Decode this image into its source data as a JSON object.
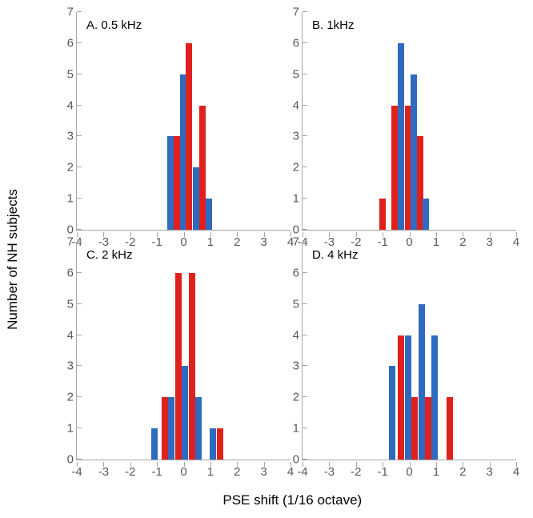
{
  "figure": {
    "x_axis_label": "PSE shift (1/16 octave)",
    "y_axis_label": "Number of NH subjects",
    "xlim": [
      -4,
      4
    ],
    "ylim": [
      0,
      7
    ],
    "x_tick_step": 1,
    "y_tick_step": 1,
    "bar_half_width_x_units": 0.12,
    "series_colors": {
      "blue": "#2e6bbf",
      "red": "#e0201c"
    },
    "axis_color": "#a6a6a6",
    "tick_label_color": "#595959",
    "tick_label_fontsize": 15,
    "title_fontsize": 15,
    "axis_label_fontsize": 17,
    "background_color": "#ffffff",
    "panels": [
      {
        "key": "A",
        "title": "A. 0.5 kHz",
        "bars": [
          {
            "x": -0.5,
            "height": 3,
            "color": "blue"
          },
          {
            "x": -0.25,
            "height": 3,
            "color": "red"
          },
          {
            "x": 0,
            "height": 5,
            "color": "blue"
          },
          {
            "x": 0.2,
            "height": 6,
            "color": "red"
          },
          {
            "x": 0.45,
            "height": 2,
            "color": "blue"
          },
          {
            "x": 0.7,
            "height": 4,
            "color": "red"
          },
          {
            "x": 0.95,
            "height": 1,
            "color": "blue"
          }
        ]
      },
      {
        "key": "B",
        "title": "B. 1kHz",
        "bars": [
          {
            "x": -1.0,
            "height": 1,
            "color": "red"
          },
          {
            "x": -0.55,
            "height": 4,
            "color": "red"
          },
          {
            "x": -0.3,
            "height": 6,
            "color": "blue"
          },
          {
            "x": -0.05,
            "height": 4,
            "color": "red"
          },
          {
            "x": 0.15,
            "height": 5,
            "color": "blue"
          },
          {
            "x": 0.4,
            "height": 3,
            "color": "red"
          },
          {
            "x": 0.6,
            "height": 1,
            "color": "blue"
          }
        ]
      },
      {
        "key": "C",
        "title": "C. 2 kHz",
        "bars": [
          {
            "x": -1.1,
            "height": 1,
            "color": "blue"
          },
          {
            "x": -0.7,
            "height": 2,
            "color": "red"
          },
          {
            "x": -0.45,
            "height": 2,
            "color": "blue"
          },
          {
            "x": -0.2,
            "height": 6,
            "color": "red"
          },
          {
            "x": 0.05,
            "height": 3,
            "color": "blue"
          },
          {
            "x": 0.3,
            "height": 6,
            "color": "red"
          },
          {
            "x": 0.55,
            "height": 2,
            "color": "blue"
          },
          {
            "x": 1.1,
            "height": 1,
            "color": "blue"
          },
          {
            "x": 1.35,
            "height": 1,
            "color": "red"
          }
        ]
      },
      {
        "key": "D",
        "title": "D. 4 kHz",
        "bars": [
          {
            "x": -0.65,
            "height": 3,
            "color": "blue"
          },
          {
            "x": -0.3,
            "height": 4,
            "color": "red"
          },
          {
            "x": -0.05,
            "height": 4,
            "color": "blue"
          },
          {
            "x": 0.2,
            "height": 2,
            "color": "red"
          },
          {
            "x": 0.45,
            "height": 5,
            "color": "blue"
          },
          {
            "x": 0.7,
            "height": 2,
            "color": "red"
          },
          {
            "x": 0.95,
            "height": 4,
            "color": "blue"
          },
          {
            "x": 1.5,
            "height": 2,
            "color": "red"
          }
        ]
      }
    ]
  }
}
